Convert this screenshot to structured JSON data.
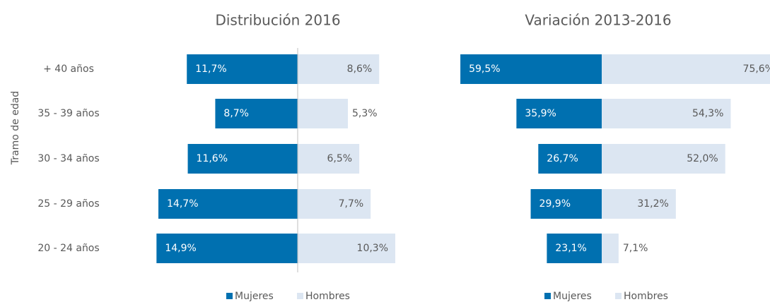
{
  "chart_data": [
    {
      "type": "butterfly",
      "title": "Distribución 2016",
      "ylabel": "Tramo de edad",
      "categories": [
        "+ 40 años",
        "35 - 39 años",
        "30 - 34 años",
        "25 - 29 años",
        "20 - 24 años"
      ],
      "series": [
        {
          "name": "Mujeres",
          "color": "#0070b0",
          "values": [
            11.7,
            8.7,
            11.6,
            14.7,
            14.9
          ],
          "value_labels": [
            "11,7%",
            "8,7%",
            "11,6%",
            "14,7%",
            "14,9%"
          ]
        },
        {
          "name": "Hombres",
          "color": "#dce6f2",
          "values": [
            8.6,
            5.3,
            6.5,
            7.7,
            10.3
          ],
          "value_labels": [
            "8,6%",
            "5,3%",
            "6,5%",
            "7,7%",
            "10,3%"
          ]
        }
      ]
    },
    {
      "type": "butterfly",
      "title": "Variación 2013-2016",
      "series": [
        {
          "name": "Mujeres",
          "color": "#0070b0",
          "values": [
            59.5,
            35.9,
            26.7,
            29.9,
            23.1
          ],
          "value_labels": [
            "59,5%",
            "35,9%",
            "26,7%",
            "29,9%",
            "23,1%"
          ]
        },
        {
          "name": "Hombres",
          "color": "#dce6f2",
          "values": [
            75.6,
            54.3,
            52.0,
            31.2,
            7.1
          ],
          "value_labels": [
            "75,6%",
            "54,3%",
            "52,0%",
            "31,2%",
            "7,1%"
          ]
        }
      ]
    }
  ]
}
